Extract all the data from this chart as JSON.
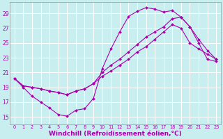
{
  "background_color": "#c8eef0",
  "line_color": "#aa00aa",
  "grid_color": "#ffffff",
  "xlabel": "Windchill (Refroidissement éolien,°C)",
  "xlabel_fontsize": 6.5,
  "tick_fontsize": 5.5,
  "xlim": [
    -0.5,
    23.5
  ],
  "ylim": [
    14.0,
    30.5
  ],
  "yticks": [
    15,
    17,
    19,
    21,
    23,
    25,
    27,
    29
  ],
  "xticks": [
    0,
    1,
    2,
    3,
    4,
    5,
    6,
    7,
    8,
    9,
    10,
    11,
    12,
    13,
    14,
    15,
    16,
    17,
    18,
    19,
    20,
    21,
    22,
    23
  ],
  "line1_x": [
    0,
    1,
    2,
    3,
    4,
    5,
    6,
    7,
    8,
    9,
    10,
    11,
    12,
    13,
    14,
    15,
    16,
    17,
    18,
    19,
    20,
    21,
    22,
    23
  ],
  "line1_y": [
    20.2,
    19.0,
    17.8,
    17.0,
    16.2,
    15.3,
    15.1,
    15.9,
    16.1,
    17.5,
    21.5,
    24.2,
    26.5,
    28.6,
    29.3,
    29.8,
    29.6,
    29.2,
    29.4,
    28.5,
    27.2,
    25.0,
    22.8,
    22.5
  ],
  "line2_x": [
    0,
    1,
    2,
    3,
    4,
    5,
    6,
    7,
    8,
    9,
    10,
    11,
    12,
    13,
    14,
    15,
    16,
    17,
    18,
    19,
    20,
    21,
    22,
    23
  ],
  "line2_y": [
    20.2,
    19.2,
    19.0,
    18.8,
    18.5,
    18.3,
    18.0,
    18.5,
    18.8,
    19.5,
    21.0,
    22.0,
    22.8,
    23.8,
    24.8,
    25.8,
    26.5,
    27.2,
    28.3,
    28.5,
    27.2,
    25.5,
    24.0,
    22.8
  ],
  "line3_x": [
    0,
    1,
    2,
    3,
    4,
    5,
    6,
    7,
    8,
    9,
    10,
    11,
    12,
    13,
    14,
    15,
    16,
    17,
    18,
    19,
    20,
    21,
    22,
    23
  ],
  "line3_y": [
    20.2,
    19.2,
    19.0,
    18.8,
    18.5,
    18.3,
    18.0,
    18.5,
    18.8,
    19.5,
    20.5,
    21.2,
    22.0,
    22.8,
    23.8,
    24.5,
    25.5,
    26.5,
    27.5,
    27.0,
    25.0,
    24.2,
    23.5,
    22.8
  ]
}
